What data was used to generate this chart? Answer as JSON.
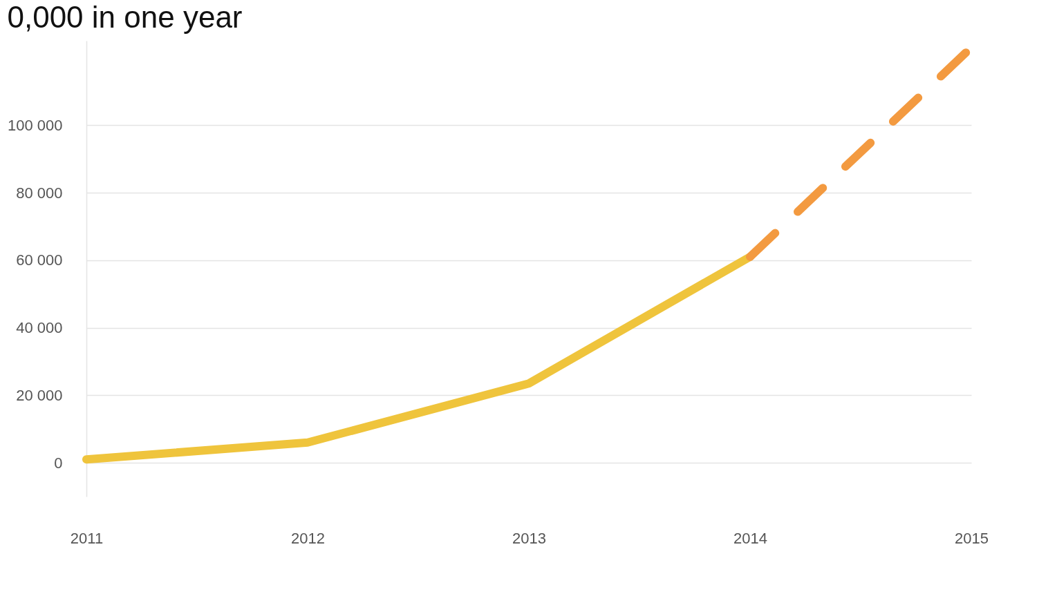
{
  "chart_data": {
    "type": "line",
    "title": "0,000 in one year",
    "series": [
      {
        "color": "#efc43c",
        "x": [
          2011,
          2012,
          2013,
          2014
        ],
        "values": [
          1000,
          6000,
          23500,
          61000
        ],
        "line_style": "solid"
      },
      {
        "color": "#f39a40",
        "x": [
          2014,
          2015
        ],
        "values": [
          61000,
          123000
        ],
        "line_style": "dashed"
      }
    ],
    "xlim": [
      2011,
      2015
    ],
    "xticks": [
      2011,
      2012,
      2013,
      2014,
      2015
    ],
    "ylim": [
      -10000,
      125000
    ],
    "yticks": [
      {
        "value": 0,
        "label": "0"
      },
      {
        "value": 20000,
        "label": "20 000"
      },
      {
        "value": 40000,
        "label": "40 000"
      },
      {
        "value": 60000,
        "label": "60 000"
      },
      {
        "value": 80000,
        "label": "80 000"
      },
      {
        "value": 100000,
        "label": "100 000"
      }
    ],
    "grid": "y",
    "marker": "none"
  }
}
